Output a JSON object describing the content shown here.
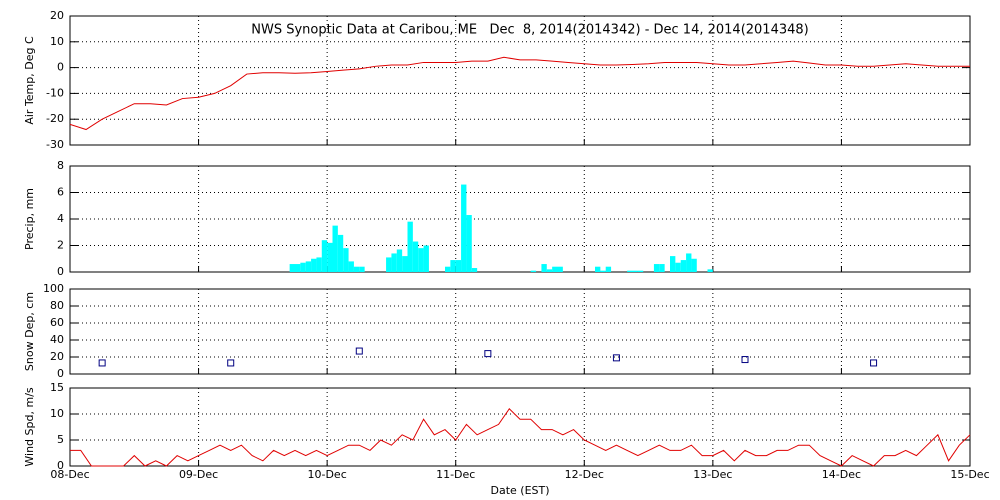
{
  "chart_data": [
    {
      "type": "line",
      "title": "NWS Synoptic Data at Caribou, ME   Dec  8, 2014(2014342) - Dec 14, 2014(2014348)",
      "ylabel": "Air Temp, Deg C",
      "color": "#e00000",
      "x": [
        0,
        3,
        6,
        9,
        12,
        15,
        18,
        21,
        24,
        27,
        30,
        33,
        36,
        39,
        42,
        45,
        48,
        51,
        54,
        57,
        60,
        63,
        66,
        69,
        72,
        75,
        78,
        81,
        84,
        87,
        90,
        93,
        96,
        99,
        102,
        105,
        108,
        111,
        114,
        117,
        120,
        123,
        126,
        129,
        132,
        135,
        138,
        141,
        144,
        147,
        150,
        153,
        156,
        159,
        162,
        165,
        168
      ],
      "values": [
        -22,
        -24,
        -20,
        -17,
        -14,
        -14,
        -14.5,
        -12,
        -11.5,
        -10,
        -7,
        -2.5,
        -2,
        -2,
        -2.2,
        -2,
        -1.5,
        -1,
        -0.5,
        0.5,
        1,
        1,
        2,
        2,
        2,
        2.5,
        2.5,
        4,
        3,
        3,
        2.5,
        2,
        1.5,
        1,
        1,
        1.2,
        1.5,
        2,
        2,
        2,
        1.5,
        1,
        1,
        1.5,
        2,
        2.5,
        1.8,
        1,
        1,
        0.5,
        0.5,
        1,
        1.5,
        1,
        0.5,
        0.5,
        0.5
      ],
      "xlim": [
        0,
        168
      ],
      "xticks": [
        0,
        24,
        48,
        72,
        96,
        120,
        144,
        168
      ],
      "ylim": [
        -30,
        20
      ],
      "yticks": [
        -30,
        -20,
        -10,
        0,
        10,
        20
      ],
      "grid": true
    },
    {
      "type": "bar",
      "ylabel": "Precip, mm",
      "color": "#00ffff",
      "x": [
        41,
        42,
        43,
        44,
        45,
        46,
        47,
        48,
        49,
        50,
        51,
        52,
        53,
        54,
        59,
        60,
        61,
        62,
        63,
        64,
        65,
        66,
        70,
        71,
        72,
        73,
        74,
        75,
        86,
        88,
        89,
        90,
        91,
        98,
        99,
        100,
        104,
        105,
        106,
        109,
        110,
        112,
        113,
        114,
        115,
        116,
        119
      ],
      "values": [
        0.6,
        0.6,
        0.7,
        0.8,
        1.0,
        1.1,
        2.4,
        2.2,
        3.5,
        2.8,
        1.8,
        0.8,
        0.4,
        0.4,
        1.1,
        1.4,
        1.7,
        1.2,
        3.8,
        2.3,
        1.8,
        2.0,
        0.4,
        0.9,
        0.9,
        6.6,
        4.3,
        0.3,
        0.1,
        0.6,
        0.2,
        0.4,
        0.4,
        0.4,
        0.1,
        0.4,
        0.1,
        0.1,
        0.1,
        0.6,
        0.6,
        1.2,
        0.7,
        0.9,
        1.4,
        1.0,
        0.2
      ],
      "xlim": [
        0,
        168
      ],
      "xticks": [
        0,
        24,
        48,
        72,
        96,
        120,
        144,
        168
      ],
      "ylim": [
        0,
        8
      ],
      "yticks": [
        0,
        2,
        4,
        6,
        8
      ],
      "grid": true
    },
    {
      "type": "scatter",
      "ylabel": "Snow Dep, cm",
      "color": "#000080",
      "x": [
        6,
        30,
        54,
        78,
        102,
        126,
        150
      ],
      "values": [
        13,
        13,
        27,
        24,
        19,
        17,
        13
      ],
      "xlim": [
        0,
        168
      ],
      "xticks": [
        0,
        24,
        48,
        72,
        96,
        120,
        144,
        168
      ],
      "ylim": [
        0,
        100
      ],
      "yticks": [
        0,
        20,
        40,
        60,
        80,
        100
      ],
      "grid": true
    },
    {
      "type": "line",
      "ylabel": "Wind Spd, m/s",
      "xlabel": "Date (EST)",
      "color": "#e00000",
      "x": [
        0,
        2,
        4,
        6,
        8,
        10,
        12,
        14,
        16,
        18,
        20,
        22,
        24,
        26,
        28,
        30,
        32,
        34,
        36,
        38,
        40,
        42,
        44,
        46,
        48,
        50,
        52,
        54,
        56,
        58,
        60,
        62,
        64,
        66,
        68,
        70,
        72,
        74,
        76,
        78,
        80,
        82,
        84,
        86,
        88,
        90,
        92,
        94,
        96,
        98,
        100,
        102,
        104,
        106,
        108,
        110,
        112,
        114,
        116,
        118,
        120,
        122,
        124,
        126,
        128,
        130,
        132,
        134,
        136,
        138,
        140,
        142,
        144,
        146,
        148,
        150,
        152,
        154,
        156,
        158,
        160,
        162,
        164,
        166,
        168
      ],
      "values": [
        3,
        3,
        0,
        0,
        0,
        0,
        2,
        0,
        1,
        0,
        2,
        1,
        2,
        3,
        4,
        3,
        4,
        2,
        1,
        3,
        2,
        3,
        2,
        3,
        2,
        3,
        4,
        4,
        3,
        5,
        4,
        6,
        5,
        9,
        6,
        7,
        5,
        8,
        6,
        7,
        8,
        11,
        9,
        9,
        7,
        7,
        6,
        7,
        5,
        4,
        3,
        4,
        3,
        2,
        3,
        4,
        3,
        3,
        4,
        2,
        2,
        3,
        1,
        3,
        2,
        2,
        3,
        3,
        4,
        4,
        2,
        1,
        0,
        2,
        1,
        0,
        2,
        2,
        3,
        2,
        4,
        6,
        1,
        4,
        6
      ],
      "xlim": [
        0,
        168
      ],
      "xticks": [
        {
          "value": 0,
          "label": "08-Dec"
        },
        {
          "value": 24,
          "label": "09-Dec"
        },
        {
          "value": 48,
          "label": "10-Dec"
        },
        {
          "value": 72,
          "label": "11-Dec"
        },
        {
          "value": 96,
          "label": "12-Dec"
        },
        {
          "value": 120,
          "label": "13-Dec"
        },
        {
          "value": 144,
          "label": "14-Dec"
        },
        {
          "value": 168,
          "label": "15-Dec"
        }
      ],
      "ylim": [
        0,
        15
      ],
      "yticks": [
        0,
        5,
        10,
        15
      ],
      "grid": true
    }
  ]
}
